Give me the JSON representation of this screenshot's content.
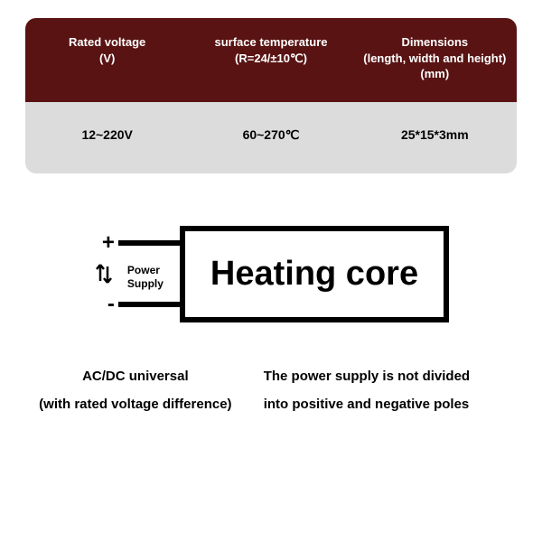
{
  "colors": {
    "header_bg": "#591313",
    "body_bg": "#dcdcdc",
    "text_light": "#ffffff",
    "text_dark": "#000000"
  },
  "table": {
    "headers": [
      "Rated voltage\n(V)",
      "surface temperature\n(R=24/±10℃)",
      "Dimensions\n(length, width and height)\n(mm)"
    ],
    "values": [
      "12~220V",
      "60~270℃",
      "25*15*3mm"
    ]
  },
  "diagram": {
    "plus": "+",
    "minus": "-",
    "power_supply": "Power\nSupply",
    "core_label": "Heating core"
  },
  "notes": {
    "left_line1": "AC/DC universal",
    "left_line2": "(with rated voltage difference)",
    "right_line1": "The power supply is not divided",
    "right_line2": "into positive and negative poles"
  }
}
